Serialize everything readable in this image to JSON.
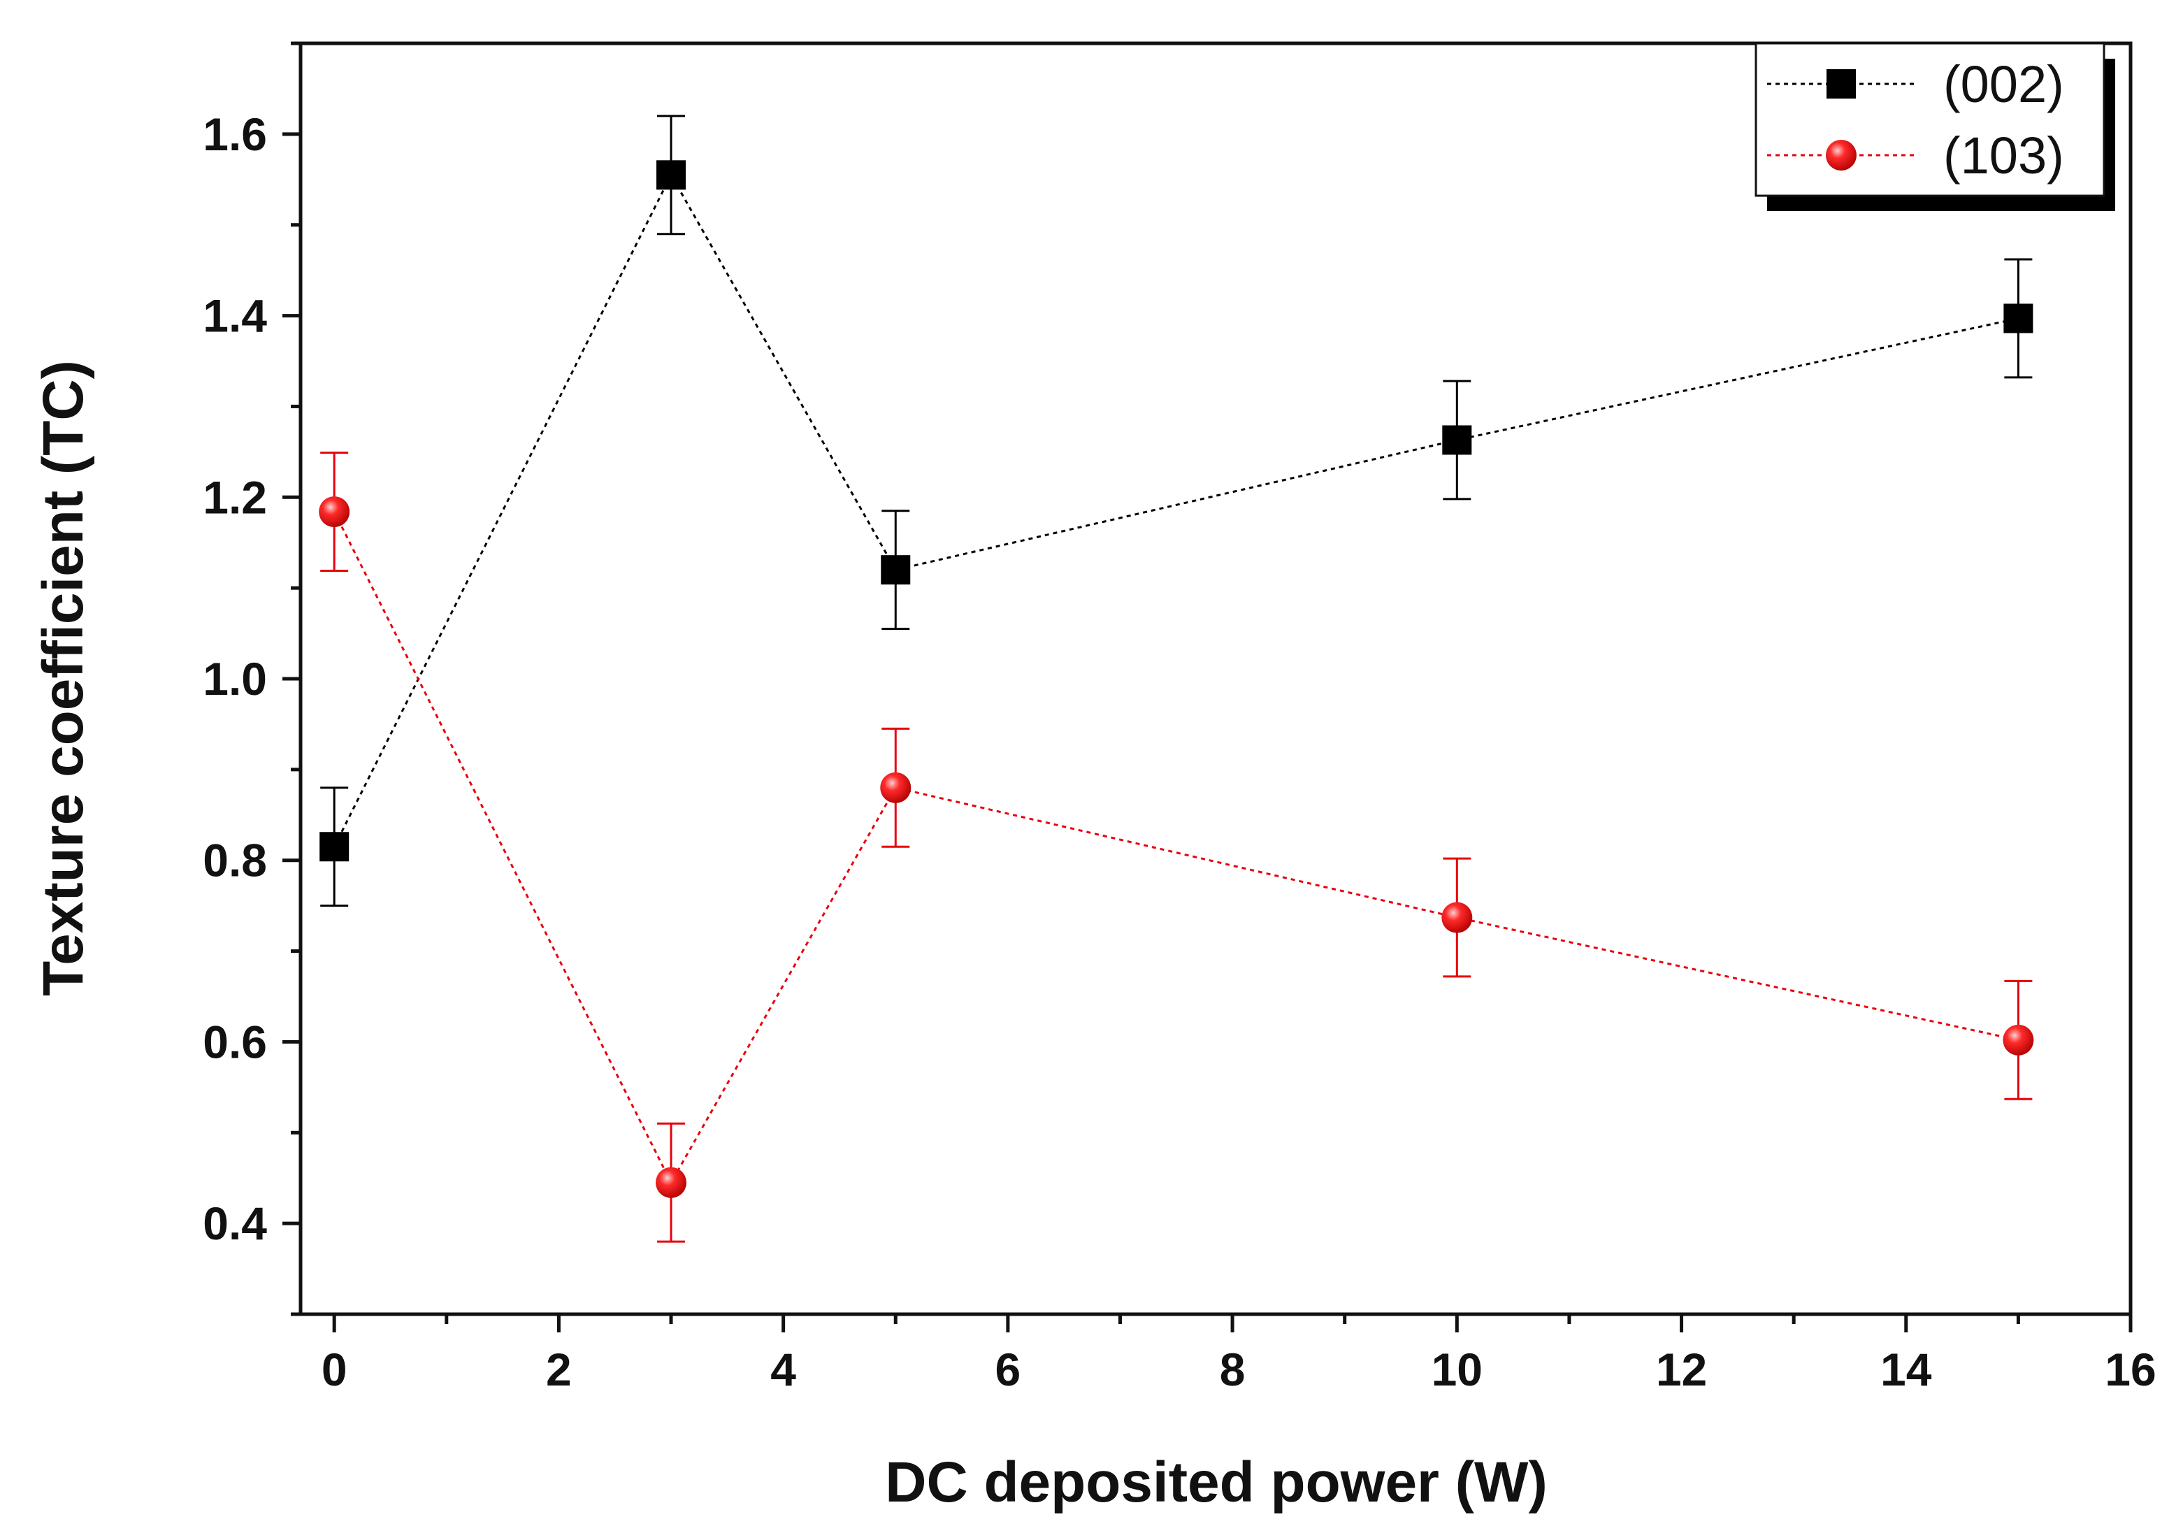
{
  "chart_data": {
    "type": "scatter",
    "title": "",
    "xlabel": "DC deposited power (W)",
    "ylabel": "Texture coefficient (TC)",
    "xlim": [
      -0.3,
      16
    ],
    "ylim": [
      0.3,
      1.7
    ],
    "xticks": [
      0,
      2,
      4,
      6,
      8,
      10,
      12,
      14,
      16
    ],
    "yticks": [
      0.4,
      0.6,
      0.8,
      1.0,
      1.2,
      1.4,
      1.6
    ],
    "xtick_labels": [
      "0",
      "2",
      "4",
      "6",
      "8",
      "10",
      "12",
      "14",
      "16"
    ],
    "ytick_labels": [
      "0.4",
      "0.6",
      "0.8",
      "1.0",
      "1.2",
      "1.4",
      "1.6"
    ],
    "legend_position": "top-right",
    "series": [
      {
        "name": "(002)",
        "color": "#000000",
        "marker": "square",
        "line_style": "dotted",
        "x": [
          0,
          3,
          5,
          10,
          15
        ],
        "y": [
          0.815,
          1.555,
          1.12,
          1.263,
          1.397
        ],
        "error": [
          0.065,
          0.065,
          0.065,
          0.065,
          0.065
        ]
      },
      {
        "name": "(103)",
        "color": "#e8000b",
        "marker": "sphere",
        "line_style": "dotted",
        "x": [
          0,
          3,
          5,
          10,
          15
        ],
        "y": [
          1.184,
          0.445,
          0.88,
          0.737,
          0.602
        ],
        "error": [
          0.065,
          0.065,
          0.065,
          0.065,
          0.065
        ]
      }
    ]
  }
}
